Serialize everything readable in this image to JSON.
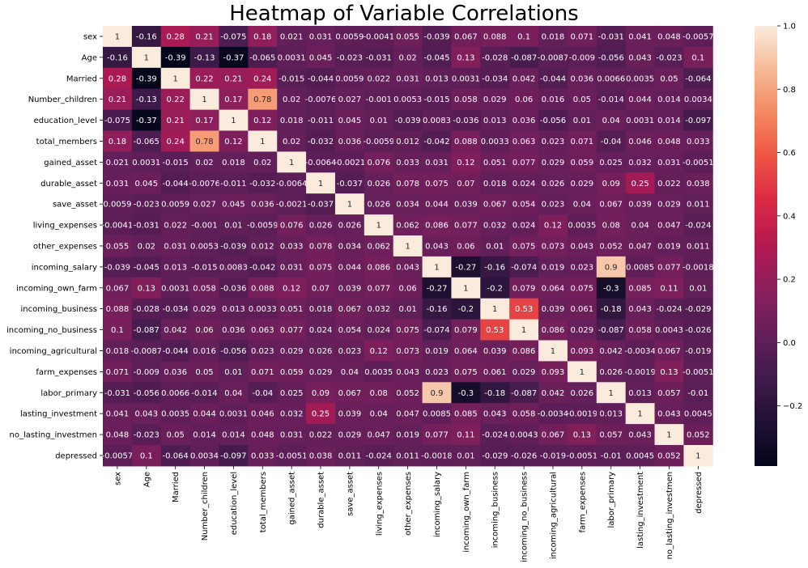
{
  "chart_data": {
    "type": "heatmap",
    "title": "Heatmap of Variable Correlations",
    "colormap": "rocket",
    "vmin": -0.39,
    "vmax": 1.0,
    "colorbar_ticks": [
      1.0,
      0.8,
      0.6,
      0.4,
      0.2,
      0.0,
      -0.2
    ],
    "colorbar_tick_labels": [
      "1.0",
      "0.8",
      "0.6",
      "0.4",
      "0.2",
      "0.0",
      "−0.2"
    ],
    "row_labels": [
      "sex",
      "Age",
      "Married",
      "Number_children",
      "education_level",
      "total_members",
      "gained_asset",
      "durable_asset",
      "save_asset",
      "living_expenses",
      "other_expenses",
      "incoming_salary",
      "incoming_own_farm",
      "incoming_business",
      "incoming_no_business",
      "incoming_agricultural",
      "farm_expenses",
      "labor_primary",
      "lasting_investment",
      "no_lasting_investmen",
      "depressed"
    ],
    "col_labels": [
      "sex",
      "Age",
      "Married",
      "Number_children",
      "education_level",
      "total_members",
      "gained_asset",
      "durable_asset",
      "save_asset",
      "living_expenses",
      "other_expenses",
      "incoming_salary",
      "incoming_own_farm",
      "incoming_business",
      "incoming_no_business",
      "incoming_agricultural",
      "farm_expenses",
      "labor_primary",
      "lasting_investment",
      "no_lasting_investmen",
      "depressed"
    ],
    "values": [
      [
        1,
        -0.16,
        0.28,
        0.21,
        -0.075,
        0.18,
        0.021,
        0.031,
        0.0059,
        -0.0041,
        0.055,
        -0.039,
        0.067,
        0.088,
        0.1,
        0.018,
        0.071,
        -0.031,
        0.041,
        0.048,
        -0.0057
      ],
      [
        -0.16,
        1,
        -0.39,
        -0.13,
        -0.37,
        -0.065,
        0.0031,
        0.045,
        -0.023,
        -0.031,
        0.02,
        -0.045,
        0.13,
        -0.028,
        -0.087,
        -0.0087,
        -0.009,
        -0.056,
        0.043,
        -0.023,
        0.1
      ],
      [
        0.28,
        -0.39,
        1,
        0.22,
        0.21,
        0.24,
        -0.015,
        -0.044,
        0.0059,
        0.022,
        0.031,
        0.013,
        0.0031,
        -0.034,
        0.042,
        -0.044,
        0.036,
        0.0066,
        0.0035,
        0.05,
        -0.064
      ],
      [
        0.21,
        -0.13,
        0.22,
        1,
        0.17,
        0.78,
        0.02,
        -0.0076,
        0.027,
        -0.001,
        0.0053,
        -0.015,
        0.058,
        0.029,
        0.06,
        0.016,
        0.05,
        -0.014,
        0.044,
        0.014,
        0.0034
      ],
      [
        -0.075,
        -0.37,
        0.21,
        0.17,
        1,
        0.12,
        0.018,
        -0.011,
        0.045,
        0.01,
        -0.039,
        0.0083,
        -0.036,
        0.013,
        0.036,
        -0.056,
        0.01,
        0.04,
        0.0031,
        0.014,
        -0.097
      ],
      [
        0.18,
        -0.065,
        0.24,
        0.78,
        0.12,
        1,
        0.02,
        -0.032,
        0.036,
        -0.0059,
        0.012,
        -0.042,
        0.088,
        0.0033,
        0.063,
        0.023,
        0.071,
        -0.04,
        0.046,
        0.048,
        0.033
      ],
      [
        0.021,
        0.0031,
        -0.015,
        0.02,
        0.018,
        0.02,
        1,
        -0.0064,
        -0.0021,
        0.076,
        0.033,
        0.031,
        0.12,
        0.051,
        0.077,
        0.029,
        0.059,
        0.025,
        0.032,
        0.031,
        -0.0051
      ],
      [
        0.031,
        0.045,
        -0.044,
        -0.0076,
        -0.011,
        -0.032,
        -0.0064,
        1,
        -0.037,
        0.026,
        0.078,
        0.075,
        0.07,
        0.018,
        0.024,
        0.026,
        0.029,
        0.09,
        0.25,
        0.022,
        0.038
      ],
      [
        0.0059,
        -0.023,
        0.0059,
        0.027,
        0.045,
        0.036,
        -0.0021,
        -0.037,
        1,
        0.026,
        0.034,
        0.044,
        0.039,
        0.067,
        0.054,
        0.023,
        0.04,
        0.067,
        0.039,
        0.029,
        0.011
      ],
      [
        -0.0041,
        -0.031,
        0.022,
        -0.001,
        0.01,
        -0.0059,
        0.076,
        0.026,
        0.026,
        1,
        0.062,
        0.086,
        0.077,
        0.032,
        0.024,
        0.12,
        0.0035,
        0.08,
        0.04,
        0.047,
        -0.024
      ],
      [
        0.055,
        0.02,
        0.031,
        0.0053,
        -0.039,
        0.012,
        0.033,
        0.078,
        0.034,
        0.062,
        1,
        0.043,
        0.06,
        0.01,
        0.075,
        0.073,
        0.043,
        0.052,
        0.047,
        0.019,
        0.011
      ],
      [
        -0.039,
        -0.045,
        0.013,
        -0.015,
        0.0083,
        -0.042,
        0.031,
        0.075,
        0.044,
        0.086,
        0.043,
        1,
        -0.27,
        -0.16,
        -0.074,
        0.019,
        0.023,
        0.9,
        0.0085,
        0.077,
        -0.0018
      ],
      [
        0.067,
        0.13,
        0.0031,
        0.058,
        -0.036,
        0.088,
        0.12,
        0.07,
        0.039,
        0.077,
        0.06,
        -0.27,
        1,
        -0.2,
        0.079,
        0.064,
        0.075,
        -0.3,
        0.085,
        0.11,
        0.01
      ],
      [
        0.088,
        -0.028,
        -0.034,
        0.029,
        0.013,
        0.0033,
        0.051,
        0.018,
        0.067,
        0.032,
        0.01,
        -0.16,
        -0.2,
        1,
        0.53,
        0.039,
        0.061,
        -0.18,
        0.043,
        -0.024,
        -0.029
      ],
      [
        0.1,
        -0.087,
        0.042,
        0.06,
        0.036,
        0.063,
        0.077,
        0.024,
        0.054,
        0.024,
        0.075,
        -0.074,
        0.079,
        0.53,
        1,
        0.086,
        0.029,
        -0.087,
        0.058,
        0.0043,
        -0.026
      ],
      [
        0.018,
        -0.0087,
        -0.044,
        0.016,
        -0.056,
        0.023,
        0.029,
        0.026,
        0.023,
        0.12,
        0.073,
        0.019,
        0.064,
        0.039,
        0.086,
        1,
        0.093,
        0.042,
        -0.0034,
        0.067,
        -0.019
      ],
      [
        0.071,
        -0.009,
        0.036,
        0.05,
        0.01,
        0.071,
        0.059,
        0.029,
        0.04,
        0.0035,
        0.043,
        0.023,
        0.075,
        0.061,
        0.029,
        0.093,
        1,
        0.026,
        -0.0019,
        0.13,
        -0.0051
      ],
      [
        -0.031,
        -0.056,
        0.0066,
        -0.014,
        0.04,
        -0.04,
        0.025,
        0.09,
        0.067,
        0.08,
        0.052,
        0.9,
        -0.3,
        -0.18,
        -0.087,
        0.042,
        0.026,
        1,
        0.013,
        0.057,
        -0.01
      ],
      [
        0.041,
        0.043,
        0.0035,
        0.044,
        0.0031,
        0.046,
        0.032,
        0.25,
        0.039,
        0.04,
        0.047,
        0.0085,
        0.085,
        0.043,
        0.058,
        -0.0034,
        -0.0019,
        0.013,
        1,
        0.043,
        0.0045
      ],
      [
        0.048,
        -0.023,
        0.05,
        0.014,
        0.014,
        0.048,
        0.031,
        0.022,
        0.029,
        0.047,
        0.019,
        0.077,
        0.11,
        -0.024,
        0.0043,
        0.067,
        0.13,
        0.057,
        0.043,
        1,
        0.052
      ],
      [
        -0.0057,
        0.1,
        -0.064,
        0.0034,
        -0.097,
        0.033,
        -0.0051,
        0.038,
        0.011,
        -0.024,
        0.011,
        -0.0018,
        0.01,
        -0.029,
        -0.026,
        -0.019,
        -0.0051,
        -0.01,
        0.0045,
        0.052,
        1
      ]
    ]
  }
}
